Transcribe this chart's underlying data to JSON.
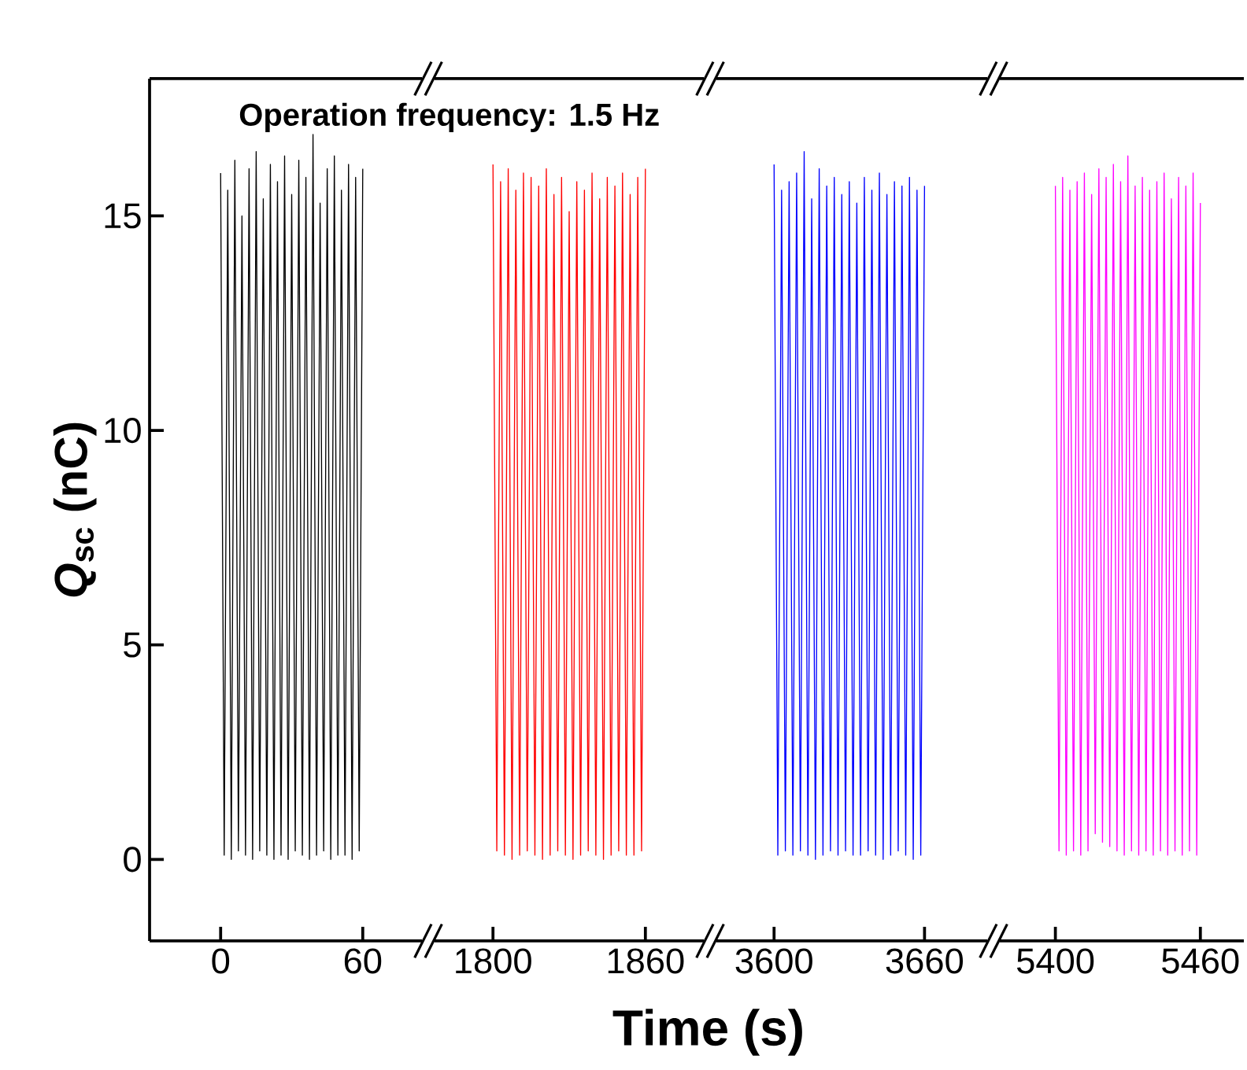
{
  "chart_data": [
    {
      "type": "line",
      "title": "Operation frequency: 1.5 Hz",
      "ylabel": "*Q*$_{sc}$ (nC)",
      "xlim": [
        -30,
        85
      ],
      "xticks": [
        0,
        60
      ],
      "ylim": [
        -1.9,
        18.2
      ],
      "yticks": [
        0,
        5,
        10,
        15
      ],
      "tick_labels": "xy",
      "line_style": "solid",
      "marker": "none",
      "series": [
        {
          "color": "#000000",
          "x": [
            0,
            1.5,
            3,
            4.5,
            6,
            7.5,
            9,
            10.5,
            12,
            13.5,
            15,
            16.5,
            18,
            19.5,
            21,
            22.5,
            24,
            25.5,
            27,
            28.5,
            30,
            31.5,
            33,
            34.5,
            36,
            37.5,
            39,
            40.5,
            42,
            43.5,
            45,
            46.5,
            48,
            49.5,
            51,
            52.5,
            54,
            55.5,
            57,
            58.5,
            60
          ],
          "values": [
            16.0,
            0.1,
            15.6,
            0.0,
            16.3,
            0.2,
            15.0,
            0.1,
            16.1,
            0.0,
            16.5,
            0.2,
            15.4,
            0.1,
            16.2,
            0.0,
            15.8,
            0.1,
            16.4,
            0.0,
            15.5,
            0.2,
            16.3,
            0.1,
            15.9,
            0.0,
            16.9,
            0.1,
            15.3,
            0.2,
            16.1,
            0.0,
            16.4,
            0.1,
            15.6,
            0.1,
            16.2,
            0.0,
            15.9,
            0.2,
            16.1
          ]
        }
      ]
    },
    {
      "type": "line",
      "xlabel": "Time (s)",
      "xlim": [
        1777,
        1883
      ],
      "xticks": [
        1800,
        1860
      ],
      "ylim": [
        -1.9,
        18.2
      ],
      "tick_labels": "x",
      "line_style": "solid",
      "marker": "none",
      "series": [
        {
          "color": "#ff0000",
          "x": [
            1800,
            1801.5,
            1803,
            1804.5,
            1806,
            1807.5,
            1809,
            1810.5,
            1812,
            1813.5,
            1815,
            1816.5,
            1818,
            1819.5,
            1821,
            1822.5,
            1824,
            1825.5,
            1827,
            1828.5,
            1830,
            1831.5,
            1833,
            1834.5,
            1836,
            1837.5,
            1839,
            1840.5,
            1842,
            1843.5,
            1845,
            1846.5,
            1848,
            1849.5,
            1851,
            1852.5,
            1854,
            1855.5,
            1857,
            1858.5,
            1860
          ],
          "values": [
            16.2,
            0.2,
            15.8,
            0.1,
            16.1,
            0.0,
            15.6,
            0.1,
            16.0,
            0.2,
            15.9,
            0.1,
            15.7,
            0.0,
            16.1,
            0.1,
            15.5,
            0.2,
            15.9,
            0.1,
            15.1,
            0.0,
            15.8,
            0.1,
            15.6,
            0.2,
            16.0,
            0.1,
            15.4,
            0.0,
            15.9,
            0.1,
            15.7,
            0.2,
            16.0,
            0.1,
            15.5,
            0.1,
            15.9,
            0.2,
            16.1
          ]
        }
      ]
    },
    {
      "type": "line",
      "xlim": [
        3577,
        3685
      ],
      "xticks": [
        3600,
        3660
      ],
      "ylim": [
        -1.9,
        18.2
      ],
      "tick_labels": "x",
      "line_style": "solid",
      "marker": "none",
      "series": [
        {
          "color": "#0000ff",
          "x": [
            3600,
            3601.5,
            3603,
            3604.5,
            3606,
            3607.5,
            3609,
            3610.5,
            3612,
            3613.5,
            3615,
            3616.5,
            3618,
            3619.5,
            3621,
            3622.5,
            3624,
            3625.5,
            3627,
            3628.5,
            3630,
            3631.5,
            3633,
            3634.5,
            3636,
            3637.5,
            3639,
            3640.5,
            3642,
            3643.5,
            3645,
            3646.5,
            3648,
            3649.5,
            3651,
            3652.5,
            3654,
            3655.5,
            3657,
            3658.5,
            3660
          ],
          "values": [
            16.2,
            0.1,
            15.6,
            0.2,
            15.8,
            0.1,
            16.0,
            0.2,
            16.5,
            0.1,
            15.4,
            0.0,
            16.1,
            0.1,
            15.7,
            0.2,
            15.9,
            0.1,
            15.5,
            0.2,
            15.8,
            0.1,
            15.3,
            0.1,
            15.9,
            0.2,
            15.6,
            0.1,
            16.0,
            0.0,
            15.5,
            0.1,
            15.8,
            0.2,
            15.7,
            0.1,
            15.9,
            0.0,
            15.6,
            0.1,
            15.7
          ]
        }
      ]
    },
    {
      "type": "line",
      "xlim": [
        5377,
        5478
      ],
      "xticks": [
        5400,
        5460
      ],
      "ylim": [
        -1.9,
        18.2
      ],
      "tick_labels": "x",
      "line_style": "solid",
      "marker": "none",
      "series": [
        {
          "color": "#ff00ff",
          "x": [
            5400,
            5401.5,
            5403,
            5404.5,
            5406,
            5407.5,
            5409,
            5410.5,
            5412,
            5413.5,
            5415,
            5416.5,
            5418,
            5419.5,
            5421,
            5422.5,
            5424,
            5425.5,
            5427,
            5428.5,
            5430,
            5431.5,
            5433,
            5434.5,
            5436,
            5437.5,
            5439,
            5440.5,
            5442,
            5443.5,
            5445,
            5446.5,
            5448,
            5449.5,
            5451,
            5452.5,
            5454,
            5455.5,
            5457,
            5458.5,
            5460
          ],
          "values": [
            15.7,
            0.2,
            15.9,
            0.1,
            15.6,
            0.2,
            15.8,
            0.1,
            16.0,
            0.2,
            15.5,
            0.6,
            16.1,
            0.4,
            15.9,
            0.3,
            16.2,
            0.2,
            15.8,
            0.1,
            16.4,
            0.2,
            15.7,
            0.1,
            15.9,
            0.2,
            15.6,
            0.1,
            15.8,
            0.2,
            16.0,
            0.1,
            15.4,
            0.2,
            15.9,
            0.1,
            15.7,
            0.2,
            16.0,
            0.1,
            15.3
          ]
        }
      ]
    }
  ]
}
